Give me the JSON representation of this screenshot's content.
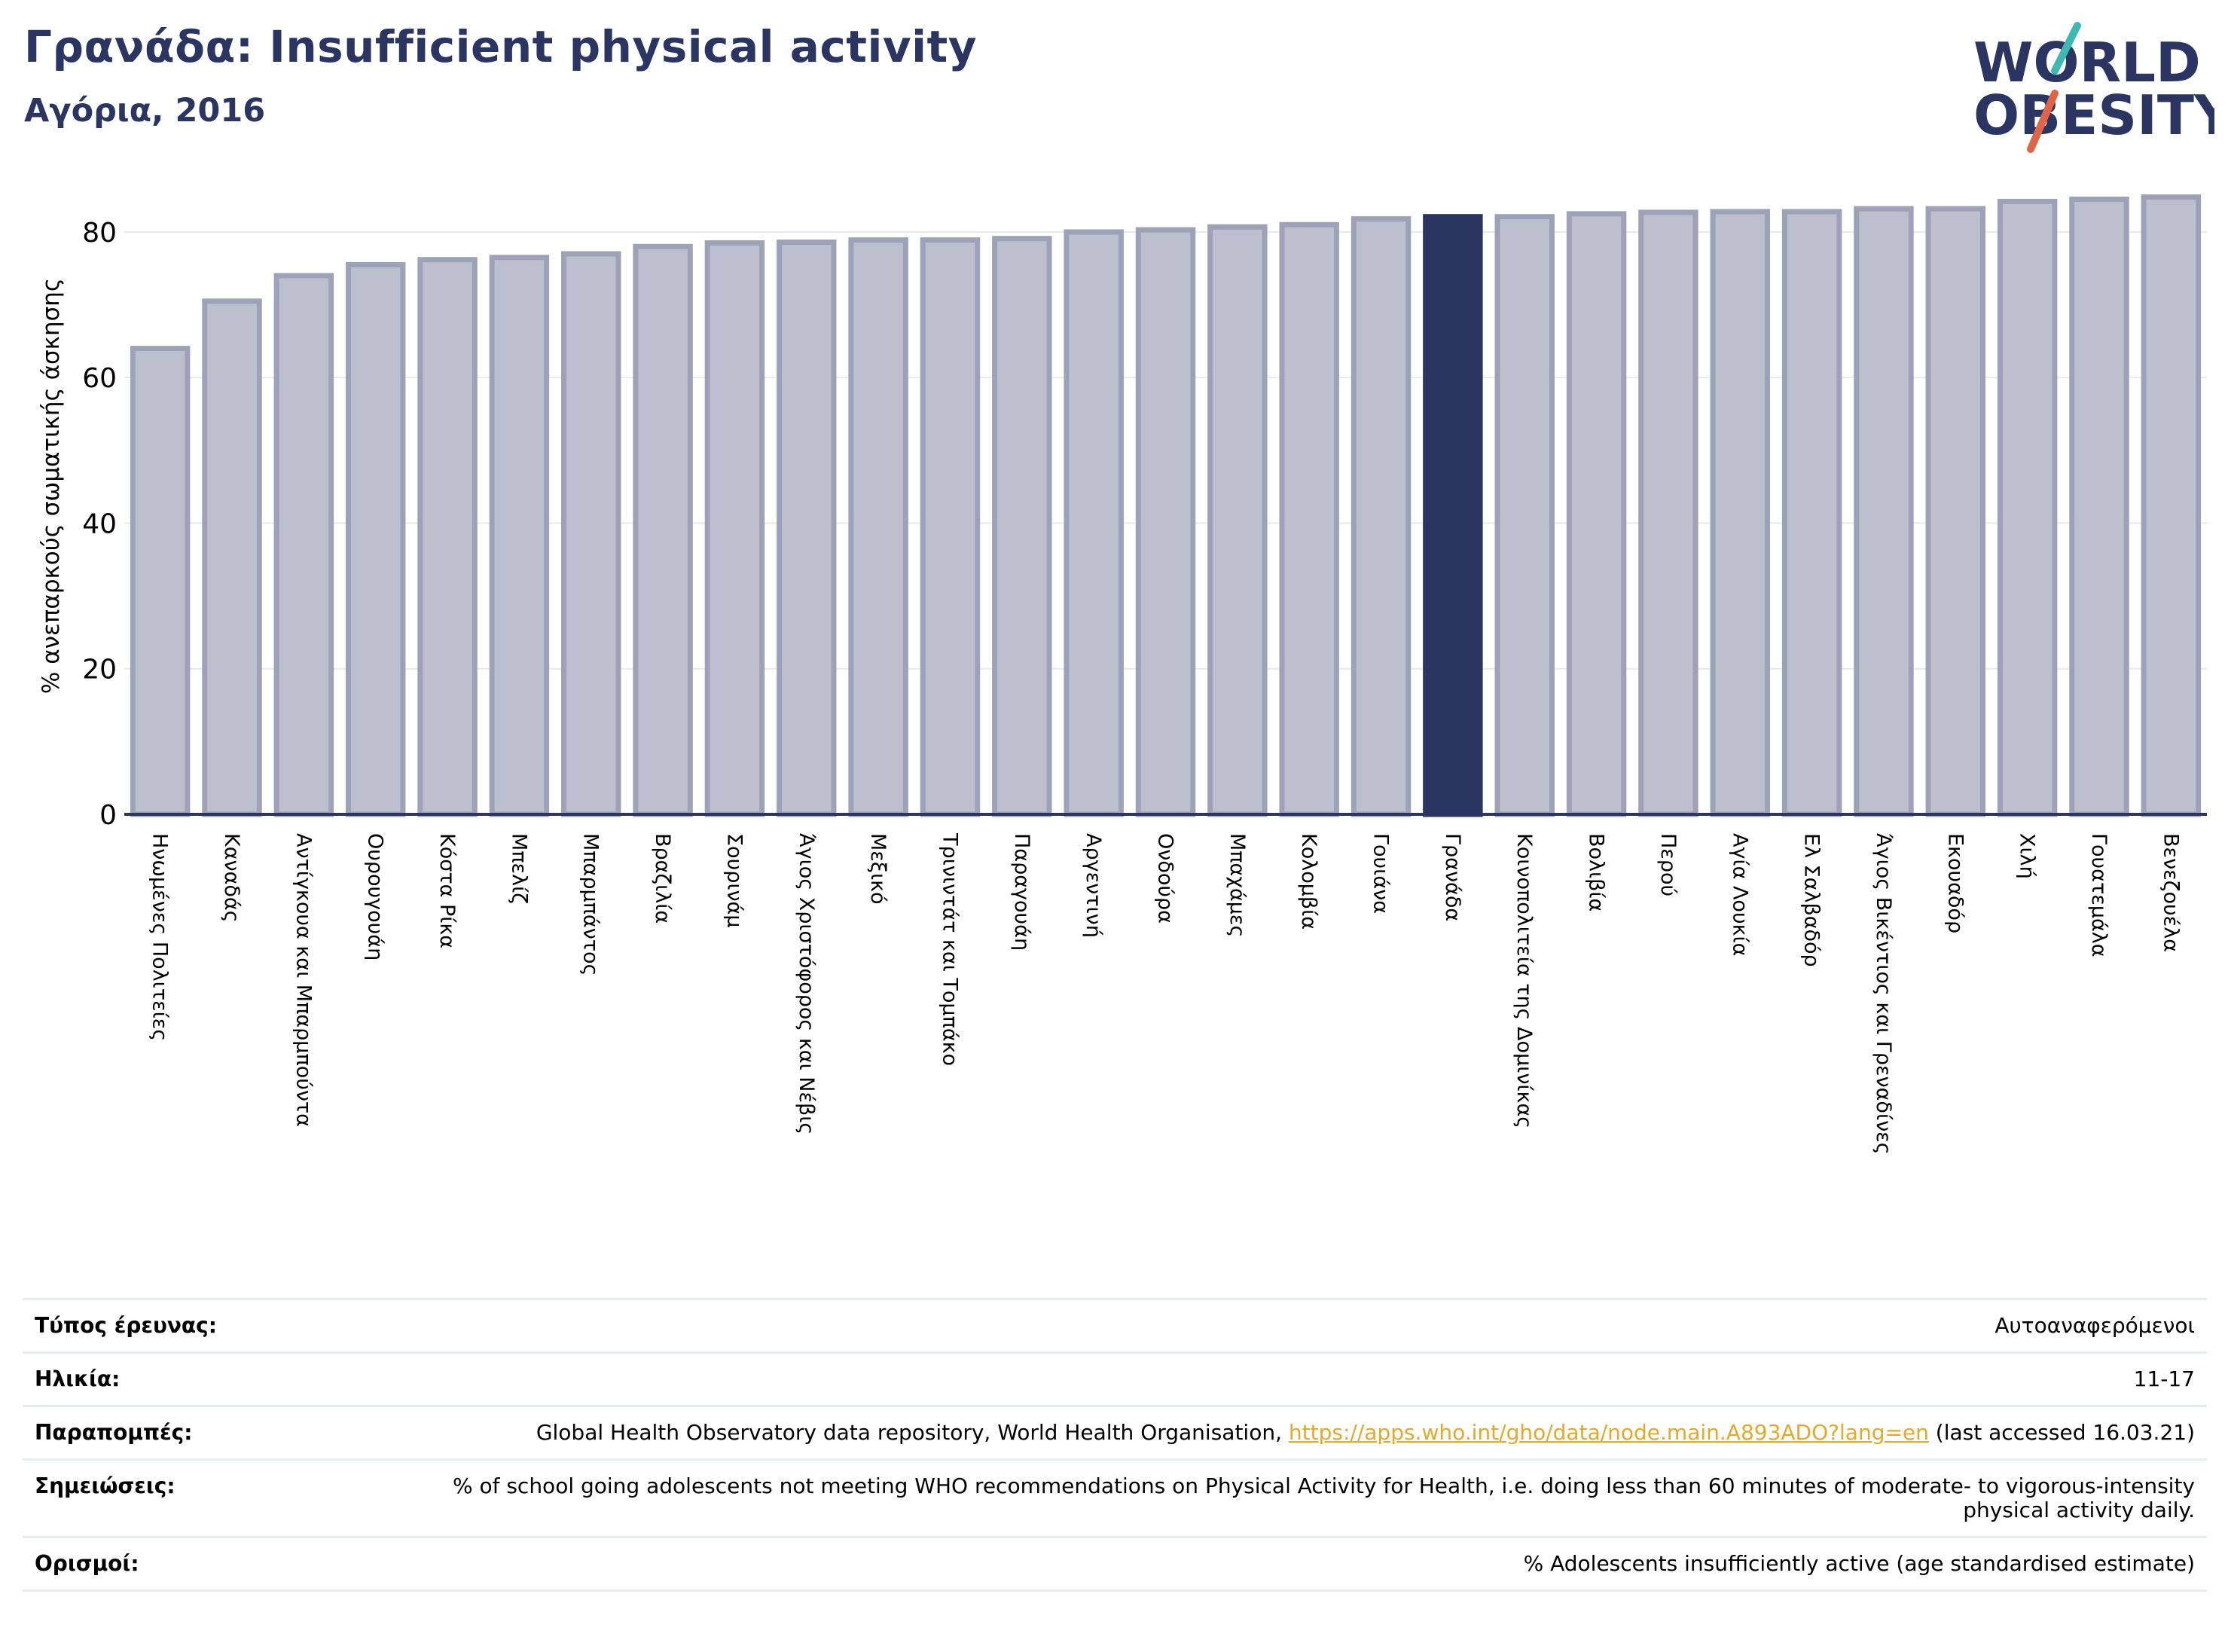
{
  "header": {
    "title": "Γρανάδα: Insufficient physical activity",
    "subtitle": "Αγόρια, 2016"
  },
  "logo": {
    "line1": "WORLD",
    "line2": "OBESITY",
    "colors": {
      "text": "#2a3561",
      "slash_teal": "#3fb8b3",
      "slash_red": "#e06448"
    }
  },
  "colors": {
    "bar_fill": "#bcbfcd",
    "bar_stroke": "#9ea2b9",
    "highlight": "#2a3561",
    "grid": "#e9e9ef",
    "axis": "#2a3561"
  },
  "chart_data": {
    "type": "bar",
    "ylabel": "% ανεπαρκούς σωματικής άσκησης",
    "ylim": [
      0,
      86
    ],
    "yticks": [
      0,
      20,
      40,
      60,
      80
    ],
    "grid": true,
    "highlight": "Γρανάδα",
    "categories": [
      "Ηνωμένες Πολιτείες",
      "Καναδάς",
      "Αντίγκουα και Μπαρμπούντα",
      "Ουρουγουάη",
      "Κόστα Ρίκα",
      "Μπελίζ",
      "Μπαρμπάντος",
      "Βραζιλία",
      "Σουρινάμ",
      "Άγιος Χριστόφορος και Νέβις",
      "Μεξικό",
      "Τρινιντάτ και Τομπάκο",
      "Παραγουάη",
      "Αργεντινή",
      "Ονδούρα",
      "Μπαχάμες",
      "Κολομβία",
      "Γουιάνα",
      "Γρανάδα",
      "Κοινοπολιτεία της Δομινίκας",
      "Βολιβία",
      "Περού",
      "Αγία Λουκία",
      "Ελ Σαλβαδόρ",
      "Άγιος Βικέντιος και Γρεναδίνες",
      "Εκουαδόρ",
      "Χιλή",
      "Γουατεμάλα",
      "Βενεζουέλα"
    ],
    "values": [
      64.0,
      70.5,
      74.0,
      75.5,
      76.2,
      76.5,
      77.0,
      78.0,
      78.5,
      78.6,
      78.9,
      78.9,
      79.1,
      80.0,
      80.3,
      80.7,
      81.0,
      81.8,
      82.1,
      82.1,
      82.5,
      82.7,
      82.8,
      82.8,
      83.2,
      83.2,
      84.2,
      84.5,
      84.8
    ]
  },
  "info": [
    {
      "key": "Τύπος έρευνας:",
      "value": "Αυτοαναφερόμενοι"
    },
    {
      "key": "Ηλικία:",
      "value": "11-17"
    },
    {
      "key": "Παραπομπές:",
      "value_pre": "Global Health Observatory data repository, World Health Organisation, ",
      "link": "https://apps.who.int/gho/data/node.main.A893ADO?lang=en",
      "value_post": " (last accessed 16.03.21)"
    },
    {
      "key": "Σημειώσεις:",
      "value": "% of school going adolescents not meeting WHO recommendations on Physical Activity for Health, i.e. doing less than 60 minutes of moderate- to vigorous-intensity physical activity daily."
    },
    {
      "key": "Ορισμοί:",
      "value": "% Adolescents insufficiently active (age standardised estimate)"
    }
  ]
}
